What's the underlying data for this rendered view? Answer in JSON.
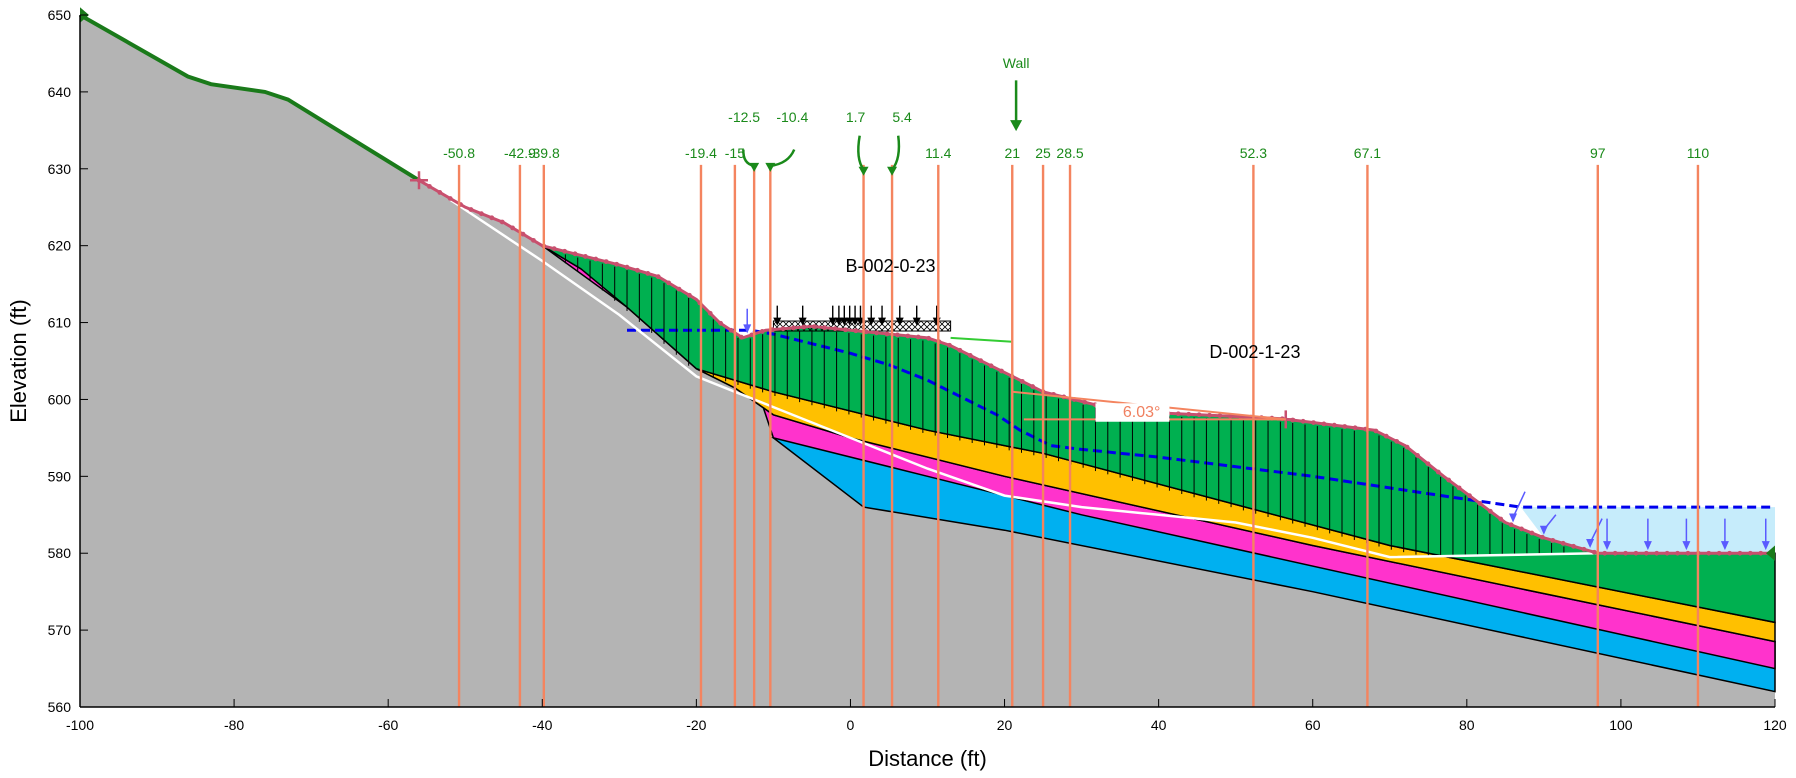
{
  "axes": {
    "x_title": "Distance (ft)",
    "y_title": "Elevation (ft)",
    "x_ticks": [
      "-100",
      "-80",
      "-60",
      "-40",
      "-20",
      "0",
      "20",
      "40",
      "60",
      "80",
      "100",
      "120"
    ],
    "y_ticks": [
      "560",
      "570",
      "580",
      "590",
      "600",
      "610",
      "620",
      "630",
      "640",
      "650"
    ],
    "xlim": [
      -100,
      120
    ],
    "ylim": [
      560,
      650
    ]
  },
  "section_lines": [
    {
      "label": "-50.8",
      "x": -50.8
    },
    {
      "label": "-42.9",
      "x": -42.9
    },
    {
      "label": "-39.8",
      "x": -39.8
    },
    {
      "label": "-19.4",
      "x": -19.4
    },
    {
      "label": "-15",
      "x": -15
    },
    {
      "label": "-12.5",
      "x": -12.5
    },
    {
      "label": "-10.4",
      "x": -10.4
    },
    {
      "label": "1.7",
      "x": 1.7
    },
    {
      "label": "5.4",
      "x": 5.4
    },
    {
      "label": "11.4",
      "x": 11.4
    },
    {
      "label": "21",
      "x": 21
    },
    {
      "label": "25",
      "x": 25
    },
    {
      "label": "28.5",
      "x": 28.5
    },
    {
      "label": "52.3",
      "x": 52.3
    },
    {
      "label": "67.1",
      "x": 67.1
    },
    {
      "label": "97",
      "x": 97
    },
    {
      "label": "110",
      "x": 110
    }
  ],
  "wall_label": "Wall",
  "borehole_labels": [
    "B-002-0-23",
    "D-002-1-23"
  ],
  "angle_label": "6.03°",
  "colors": {
    "bedrock": "#b4b4b4",
    "fill_green": "#00b050",
    "yellow": "#ffc000",
    "magenta": "#ff33cc",
    "blue": "#00b0f0",
    "water": "#c6ecfb",
    "water_line": "#0000ee",
    "section_line": "#f4845f",
    "slip_surface": "#ffffff",
    "ground_line": "#1a7a1a",
    "label_green": "#1a8a1a",
    "surface_dots": "#c8506e"
  },
  "layers": {
    "ground_surface": [
      [
        -100,
        650
      ],
      [
        -86,
        642
      ],
      [
        -83,
        641
      ],
      [
        -76,
        640
      ],
      [
        -73,
        639
      ],
      [
        -56,
        628.5
      ],
      [
        -50,
        625
      ],
      [
        -45,
        623
      ],
      [
        -40,
        620
      ],
      [
        -36,
        619
      ],
      [
        -30,
        617.5
      ],
      [
        -25,
        616
      ],
      [
        -20,
        613
      ],
      [
        -17,
        610
      ],
      [
        -14,
        608
      ],
      [
        -11,
        609
      ],
      [
        -5,
        609.5
      ],
      [
        0,
        609
      ],
      [
        10,
        608
      ],
      [
        13,
        607
      ],
      [
        18,
        604.5
      ],
      [
        22,
        602.5
      ],
      [
        25,
        601
      ],
      [
        35,
        598.5
      ],
      [
        56,
        597.5
      ],
      [
        60,
        597
      ],
      [
        68,
        596
      ],
      [
        72,
        594
      ],
      [
        77,
        590
      ],
      [
        85,
        584
      ],
      [
        90,
        582
      ],
      [
        97,
        580
      ],
      [
        120,
        580
      ]
    ],
    "green_bottom": [
      [
        -40,
        620
      ],
      [
        -35,
        617
      ],
      [
        -29,
        612
      ],
      [
        -20,
        604
      ],
      [
        -10,
        601
      ],
      [
        10,
        596
      ],
      [
        25,
        593
      ],
      [
        70,
        581
      ],
      [
        120,
        571
      ]
    ],
    "yellow_bottom": [
      [
        -20,
        604
      ],
      [
        -15,
        601.5
      ],
      [
        -10,
        598
      ],
      [
        0,
        595
      ],
      [
        20,
        590
      ],
      [
        60,
        581
      ],
      [
        120,
        568.5
      ]
    ],
    "magenta_bottom": [
      [
        -45,
        623
      ],
      [
        -35,
        617
      ],
      [
        -25,
        611
      ],
      [
        -19.4,
        607
      ],
      [
        -12,
        601
      ],
      [
        -10,
        595
      ],
      [
        10,
        590
      ],
      [
        30,
        585
      ],
      [
        120,
        565
      ]
    ],
    "blue_bottom": [
      [
        -10,
        595
      ],
      [
        1.7,
        586
      ],
      [
        20,
        583
      ],
      [
        60,
        575
      ],
      [
        120,
        562
      ]
    ],
    "water_table": [
      [
        -29,
        609
      ],
      [
        -13,
        609
      ],
      [
        -10,
        608.5
      ],
      [
        0,
        606
      ],
      [
        5,
        604.5
      ],
      [
        10,
        602.5
      ],
      [
        15,
        600
      ],
      [
        19,
        598
      ],
      [
        22,
        596
      ],
      [
        26,
        594
      ],
      [
        30,
        593.5
      ],
      [
        40,
        592.5
      ],
      [
        60,
        590
      ],
      [
        70,
        588.5
      ],
      [
        80,
        587
      ],
      [
        87,
        586
      ],
      [
        120,
        586
      ]
    ],
    "slip_surface": [
      [
        -52,
        626
      ],
      [
        -40,
        618
      ],
      [
        -30,
        611
      ],
      [
        -20,
        603
      ],
      [
        -15,
        601
      ],
      [
        -10,
        599
      ],
      [
        0,
        595
      ],
      [
        10,
        591
      ],
      [
        20,
        587.5
      ],
      [
        30,
        586
      ],
      [
        40,
        585
      ],
      [
        50,
        584
      ],
      [
        60,
        582
      ],
      [
        70,
        579.5
      ],
      [
        97,
        580
      ]
    ],
    "surcharge_x": [
      -10,
      13
    ],
    "wall_x": 21,
    "ponded_water_x": [
      87,
      120
    ]
  }
}
